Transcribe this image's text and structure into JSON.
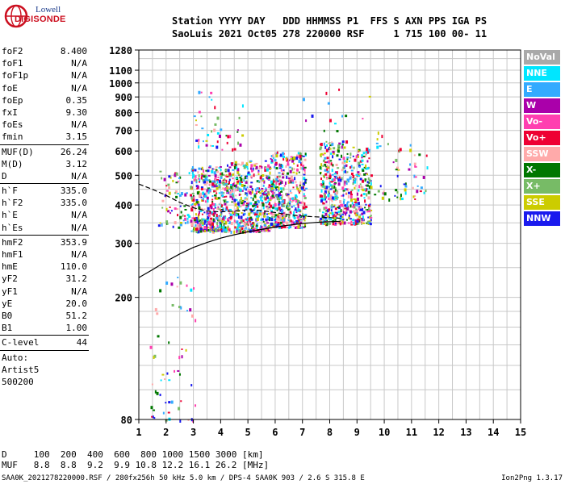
{
  "logo": {
    "line1": "Lowell",
    "line2": "DIGISONDE"
  },
  "header": {
    "line1": "Station YYYY DAY   DDD HHMMSS P1  FFS S AXN PPS IGA PS",
    "line2": "SaoLuis 2021 Oct05 278 220000 RSF     1 715 100 00- 11"
  },
  "params": [
    {
      "group": [
        {
          "name": "foF2",
          "value": "8.400"
        },
        {
          "name": "foF1",
          "value": "N/A"
        },
        {
          "name": "foF1p",
          "value": "N/A"
        },
        {
          "name": "foE",
          "value": "N/A"
        },
        {
          "name": "foEp",
          "value": "0.35"
        },
        {
          "name": "fxI",
          "value": "9.30"
        },
        {
          "name": "foEs",
          "value": "N/A"
        },
        {
          "name": "fmin",
          "value": "3.15"
        }
      ]
    },
    {
      "group": [
        {
          "name": "MUF(D)",
          "value": "26.24"
        },
        {
          "name": "M(D)",
          "value": "3.12"
        },
        {
          "name": "D",
          "value": "N/A"
        }
      ]
    },
    {
      "group": [
        {
          "name": "h`F",
          "value": "335.0"
        },
        {
          "name": "h`F2",
          "value": "335.0"
        },
        {
          "name": "h`E",
          "value": "N/A"
        },
        {
          "name": "h`Es",
          "value": "N/A"
        }
      ]
    },
    {
      "group": [
        {
          "name": "hmF2",
          "value": "353.9"
        },
        {
          "name": "hmF1",
          "value": "N/A"
        },
        {
          "name": "hmE",
          "value": "110.0"
        },
        {
          "name": "yF2",
          "value": "31.2"
        },
        {
          "name": "yF1",
          "value": "N/A"
        },
        {
          "name": "yE",
          "value": "20.0"
        },
        {
          "name": "B0",
          "value": "51.2"
        },
        {
          "name": "B1",
          "value": "1.00"
        }
      ]
    },
    {
      "group": [
        {
          "name": "C-level",
          "value": "44"
        }
      ]
    }
  ],
  "auto_block": {
    "line1": "Auto:",
    "line2": "Artist5",
    "line3": "500200"
  },
  "legend": [
    {
      "label": "NoVal",
      "color": "#a9a9a9"
    },
    {
      "label": "NNE",
      "color": "#00e6ff"
    },
    {
      "label": "E",
      "color": "#33aaff"
    },
    {
      "label": "W",
      "color": "#aa00aa"
    },
    {
      "label": "Vo-",
      "color": "#ff3fb0"
    },
    {
      "label": "Vo+",
      "color": "#ee0033"
    },
    {
      "label": "SSW",
      "color": "#ffaaaa"
    },
    {
      "label": "X-",
      "color": "#007700"
    },
    {
      "label": "X+",
      "color": "#77bb66"
    },
    {
      "label": "SSE",
      "color": "#cccc00"
    },
    {
      "label": "NNW",
      "color": "#1a1aee"
    }
  ],
  "bottom": {
    "d_row": "D     100  200  400  600  800 1000 1500 3000 [km]",
    "muf_row": "MUF   8.8  8.8  9.2  9.9 10.8 12.2 16.1 26.2 [MHz]"
  },
  "footer": {
    "left": "SAA0K_2021278220000.RSF / 280fx256h 50 kHz 5.0 km / DPS-4 SAA0K 903 / 2.6 S 315.8 E",
    "right": "Ion2Png 1.3.17"
  },
  "chart_data": {
    "type": "scatter",
    "xlim": [
      1,
      15
    ],
    "ylim": [
      80,
      1280
    ],
    "x_ticks": [
      1,
      2,
      3,
      4,
      5,
      6,
      7,
      8,
      9,
      10,
      11,
      12,
      13,
      14,
      15
    ],
    "y_ticks": [
      80,
      200,
      300,
      400,
      500,
      600,
      700,
      800,
      900,
      1000,
      1100,
      1280
    ],
    "grid": true,
    "scale_y": "log",
    "series": [
      {
        "name": "trace",
        "color": "#000000",
        "x": [
          1.0,
          1.5,
          2.0,
          2.5,
          3.0,
          3.5,
          4.0,
          4.5,
          5.0,
          5.5,
          6.0,
          6.5,
          7.0,
          7.5,
          8.0,
          8.4
        ],
        "y": [
          232,
          246,
          262,
          277,
          291,
          302,
          312,
          320,
          327,
          333,
          339,
          344,
          348,
          351,
          353,
          354
        ]
      },
      {
        "name": "trace",
        "color": "#000000",
        "x": [
          1.0,
          1.5,
          2.0,
          2.5,
          3.0,
          3.5,
          4.0,
          4.5,
          5.0,
          5.5,
          6.0,
          6.5,
          7.0,
          7.5,
          8.0,
          8.4
        ],
        "y": [
          468,
          450,
          430,
          408,
          392,
          382,
          380,
          382,
          386,
          384,
          378,
          372,
          368,
          366,
          364,
          362
        ]
      }
    ],
    "echo_regions": [
      {
        "x": [
          1.7,
          2.9
        ],
        "y": [
          340,
          520
        ],
        "density": 70
      },
      {
        "x": [
          2.9,
          4.2
        ],
        "y": [
          330,
          540
        ],
        "density": 420
      },
      {
        "x": [
          4.2,
          5.8
        ],
        "y": [
          330,
          560
        ],
        "density": 480
      },
      {
        "x": [
          5.8,
          7.1
        ],
        "y": [
          340,
          600
        ],
        "density": 420
      },
      {
        "x": [
          7.6,
          8.6
        ],
        "y": [
          350,
          650
        ],
        "density": 300
      },
      {
        "x": [
          8.6,
          9.5
        ],
        "y": [
          350,
          620
        ],
        "density": 220
      },
      {
        "x": [
          9.5,
          11.6
        ],
        "y": [
          420,
          700
        ],
        "density": 60
      },
      {
        "x": [
          3.0,
          4.8
        ],
        "y": [
          600,
          950
        ],
        "density": 45
      },
      {
        "x": [
          1.4,
          3.1
        ],
        "y": [
          80,
          240
        ],
        "density": 60
      },
      {
        "x": [
          7.0,
          9.5
        ],
        "y": [
          700,
          960
        ],
        "density": 14
      }
    ]
  }
}
